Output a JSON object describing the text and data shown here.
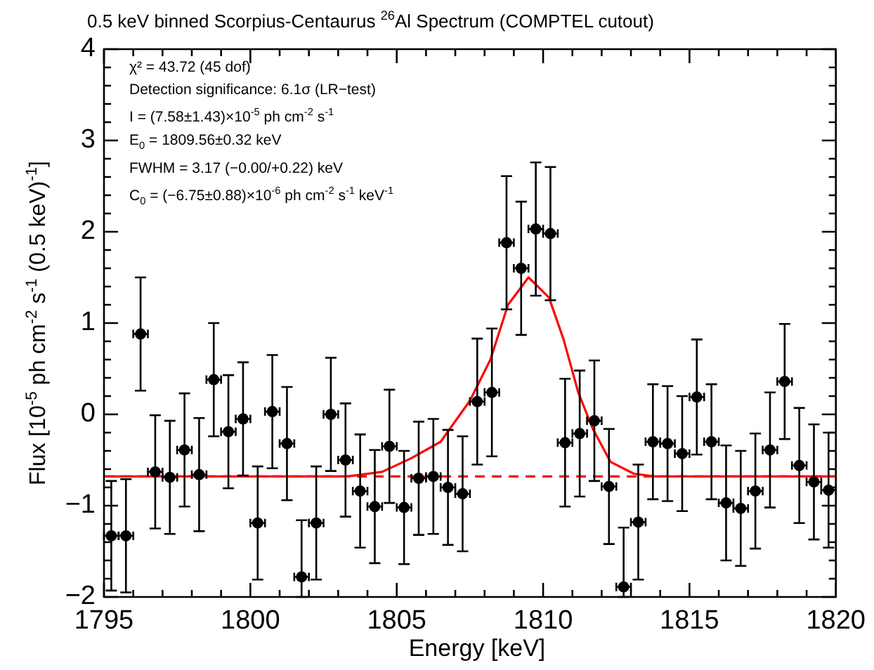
{
  "chart_data": {
    "type": "scatter",
    "title": "0.5 keV binned Scorpius-Centaurus $^{26}$Al Spectrum (COMPTEL cutout)",
    "xlabel": "Energy [keV]",
    "ylabel": "Flux [10$^{-5}$ ph cm$^{-2}$ s$^{-1}$ (0.5 keV)$^{-1}$]",
    "annotations": [
      "χ² = 43.72 (45 dof)",
      "Detection significance: 6.1σ (LR−test)",
      "I = (7.58±1.43)×10$^{-5}$ ph cm$^{-2}$ s$^{-1}$",
      "E$_{0}$ = 1809.56±0.32 keV",
      "FWHM = 3.17 (−0.00/+0.22) keV",
      "C$_{0}$ = (−6.75±0.88)×10$^{-6}$ ph cm$^{-2}$ s$^{-1}$ keV$^{-1}$"
    ],
    "xlim": [
      1795,
      1820
    ],
    "xticks": [
      1795,
      {
        "value": 1796,
        "label": null
      },
      {
        "value": 1797,
        "label": null
      },
      {
        "value": 1798,
        "label": null
      },
      {
        "value": 1799,
        "label": null
      },
      1800,
      {
        "value": 1801,
        "label": null
      },
      {
        "value": 1802,
        "label": null
      },
      {
        "value": 1803,
        "label": null
      },
      {
        "value": 1804,
        "label": null
      },
      1805,
      {
        "value": 1806,
        "label": null
      },
      {
        "value": 1807,
        "label": null
      },
      {
        "value": 1808,
        "label": null
      },
      {
        "value": 1809,
        "label": null
      },
      1810,
      {
        "value": 1811,
        "label": null
      },
      {
        "value": 1812,
        "label": null
      },
      {
        "value": 1813,
        "label": null
      },
      {
        "value": 1814,
        "label": null
      },
      1815,
      {
        "value": 1816,
        "label": null
      },
      {
        "value": 1817,
        "label": null
      },
      {
        "value": 1818,
        "label": null
      },
      {
        "value": 1819,
        "label": null
      },
      1820
    ],
    "ylim": [
      -2,
      4
    ],
    "yticks": [
      -2,
      {
        "value": -1.8,
        "label": null
      },
      {
        "value": -1.6,
        "label": null
      },
      {
        "value": -1.4,
        "label": null
      },
      {
        "value": -1.2,
        "label": null
      },
      -1,
      {
        "value": -0.8,
        "label": null
      },
      {
        "value": -0.6,
        "label": null
      },
      {
        "value": -0.4,
        "label": null
      },
      {
        "value": -0.2,
        "label": null
      },
      0,
      {
        "value": 0.2,
        "label": null
      },
      {
        "value": 0.4,
        "label": null
      },
      {
        "value": 0.6,
        "label": null
      },
      {
        "value": 0.8,
        "label": null
      },
      1,
      {
        "value": 1.2,
        "label": null
      },
      {
        "value": 1.4,
        "label": null
      },
      {
        "value": 1.6,
        "label": null
      },
      {
        "value": 1.8,
        "label": null
      },
      2,
      {
        "value": 2.2,
        "label": null
      },
      {
        "value": 2.4,
        "label": null
      },
      {
        "value": 2.6,
        "label": null
      },
      {
        "value": 2.8,
        "label": null
      },
      3,
      {
        "value": 3.2,
        "label": null
      },
      {
        "value": 3.4,
        "label": null
      },
      {
        "value": 3.6,
        "label": null
      },
      {
        "value": 3.8,
        "label": null
      },
      4
    ],
    "grid": false,
    "legend": false,
    "series": [
      {
        "type": "line",
        "color": "#ff0000",
        "line_style": "dashed",
        "marker": "none",
        "x": [
          1795,
          1820
        ],
        "values": [
          -0.68,
          -0.68
        ]
      },
      {
        "type": "line",
        "color": "#ff0000",
        "line_style": "solid",
        "marker": "none",
        "x": [
          1795,
          1803.3,
          1804.5,
          1805.5,
          1806.5,
          1807.5,
          1808.2,
          1808.8,
          1809.5,
          1810.2,
          1810.7,
          1811.2,
          1811.7,
          1812.3,
          1813.1,
          1813.8,
          1820
        ],
        "values": [
          -0.68,
          -0.68,
          -0.63,
          -0.48,
          -0.3,
          0.15,
          0.6,
          1.2,
          1.5,
          1.28,
          0.82,
          0.24,
          -0.16,
          -0.52,
          -0.65,
          -0.68,
          -0.68
        ]
      },
      {
        "type": "scatter",
        "color": "#000000",
        "marker": "circle",
        "x": [
          1795.25,
          1795.75,
          1796.25,
          1796.75,
          1797.25,
          1797.75,
          1798.25,
          1798.75,
          1799.25,
          1799.75,
          1800.25,
          1800.75,
          1801.25,
          1801.75,
          1802.25,
          1802.75,
          1803.25,
          1803.75,
          1804.25,
          1804.75,
          1805.25,
          1805.75,
          1806.25,
          1806.75,
          1807.25,
          1807.75,
          1808.25,
          1808.75,
          1809.25,
          1809.75,
          1810.25,
          1810.75,
          1811.25,
          1811.75,
          1812.25,
          1812.75,
          1813.25,
          1813.75,
          1814.25,
          1814.75,
          1815.25,
          1815.75,
          1816.25,
          1816.75,
          1817.25,
          1817.75,
          1818.25,
          1818.75,
          1819.25,
          1819.75
        ],
        "values": [
          -1.33,
          -1.33,
          0.88,
          -0.63,
          -0.69,
          -0.39,
          -0.66,
          0.38,
          -0.19,
          -0.05,
          -1.19,
          0.03,
          -0.32,
          -1.78,
          -1.19,
          0.0,
          -0.5,
          -0.84,
          -1.01,
          -0.35,
          -1.02,
          -0.7,
          -0.68,
          -0.8,
          -0.87,
          0.14,
          0.24,
          1.88,
          1.6,
          2.03,
          1.98,
          -0.31,
          -0.21,
          -0.07,
          -0.79,
          -1.89,
          -1.18,
          -0.3,
          -0.32,
          -0.43,
          0.19,
          -0.3,
          -0.97,
          -1.03,
          -0.84,
          -0.39,
          0.36,
          -0.56,
          -0.74,
          -0.83
        ],
        "errors": [
          0.6,
          0.62,
          0.62,
          0.62,
          0.62,
          0.62,
          0.62,
          0.62,
          0.62,
          0.62,
          0.62,
          0.62,
          0.62,
          [
            -2,
            -1.16
          ],
          0.62,
          0.62,
          0.62,
          0.62,
          0.62,
          0.62,
          0.62,
          0.62,
          0.63,
          0.63,
          0.63,
          0.69,
          0.7,
          0.73,
          0.73,
          0.73,
          0.73,
          0.7,
          0.69,
          0.66,
          0.63,
          [
            -2,
            -1.24
          ],
          0.63,
          0.63,
          0.63,
          0.63,
          0.63,
          0.63,
          0.63,
          0.63,
          0.63,
          0.63,
          0.63,
          0.63,
          0.63,
          0.63
        ],
        "xerrors": [
          0.25,
          0.25,
          0.25,
          0.25,
          0.25,
          0.25,
          0.25,
          0.25,
          0.25,
          0.25,
          0.25,
          0.25,
          0.25,
          0.25,
          0.25,
          0.25,
          0.25,
          0.25,
          0.25,
          0.25,
          0.25,
          0.25,
          0.25,
          0.25,
          0.25,
          0.25,
          0.25,
          0.25,
          0.25,
          0.25,
          0.25,
          0.25,
          0.25,
          0.25,
          0.25,
          0.25,
          0.25,
          0.25,
          0.25,
          0.25,
          0.25,
          0.25,
          0.25,
          0.25,
          0.25,
          0.25,
          0.25,
          0.25,
          0.25,
          0.25
        ]
      }
    ]
  }
}
